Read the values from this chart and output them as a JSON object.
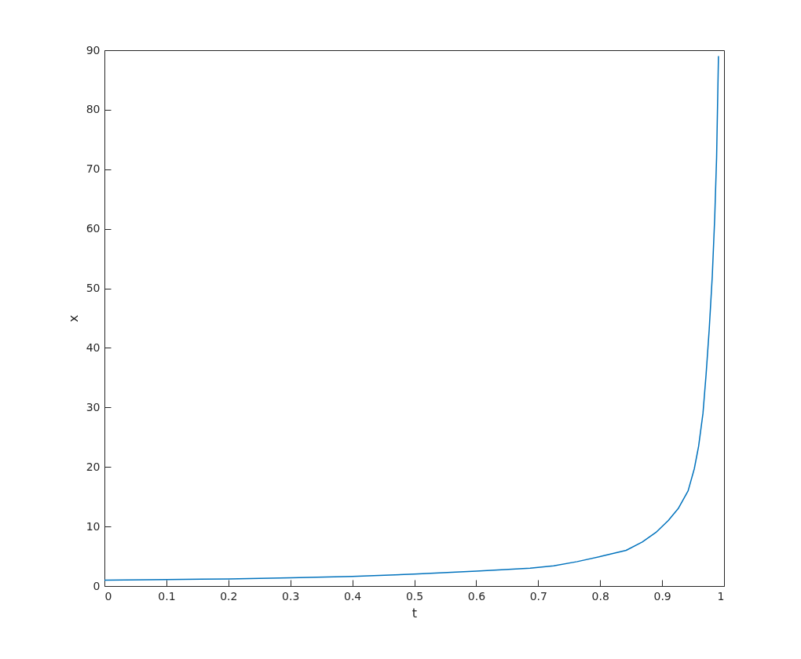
{
  "chart_data": {
    "type": "line",
    "xlabel": "t",
    "ylabel": "x",
    "xlim": [
      0,
      1
    ],
    "ylim": [
      0,
      90
    ],
    "xticks": [
      0,
      0.1,
      0.2,
      0.3,
      0.4,
      0.5,
      0.6,
      0.7,
      0.8,
      0.9,
      1
    ],
    "yticks": [
      0,
      10,
      20,
      30,
      40,
      50,
      60,
      70,
      80,
      90
    ],
    "line_style": "solid",
    "series": [
      {
        "color": "#0072bd",
        "x": [
          0,
          0.1,
          0.2,
          0.3,
          0.4,
          0.5,
          0.6,
          0.687,
          0.725,
          0.763,
          0.802,
          0.842,
          0.868,
          0.89,
          0.91,
          0.926,
          0.942,
          0.952,
          0.959,
          0.966,
          0.971,
          0.976,
          0.981,
          0.985,
          0.988,
          0.991
        ],
        "values": [
          1,
          1.1,
          1.2,
          1.4,
          1.6,
          2,
          2.5,
          3,
          3.4,
          4.1,
          5,
          6,
          7.4,
          9,
          11,
          13,
          16,
          19.7,
          23.5,
          29,
          35.5,
          43,
          52,
          62,
          72,
          89
        ]
      }
    ]
  }
}
